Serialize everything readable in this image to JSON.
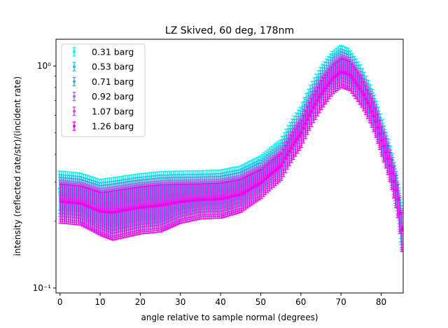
{
  "chart_data": {
    "type": "scatter",
    "title": "LZ Skived, 60 deg, 178nm",
    "xlabel": "angle relative to sample normal (degrees)",
    "ylabel": "intensity (reflected rate/str)/(incident rate)",
    "xlim": [
      -1,
      85.5
    ],
    "ylim": [
      0.095,
      1.32
    ],
    "yscale": "log",
    "grid": false,
    "legend_position": "top-left",
    "error_bars": true,
    "x_ticks": [
      0,
      10,
      20,
      30,
      40,
      50,
      60,
      70,
      80
    ],
    "x_tick_labels": [
      "0",
      "10",
      "20",
      "30",
      "40",
      "50",
      "60",
      "70",
      "80"
    ],
    "y_ticks": [
      0.1,
      1.0
    ],
    "y_tick_labels": [
      "10⁻¹",
      "10⁰"
    ],
    "profile": {
      "x": [
        0,
        5,
        10,
        13,
        20,
        25,
        30,
        35,
        40,
        45,
        50,
        55,
        60,
        65,
        68,
        70,
        72,
        75,
        78,
        80,
        82,
        84,
        85
      ],
      "y": [
        0.255,
        0.25,
        0.23,
        0.228,
        0.24,
        0.245,
        0.255,
        0.26,
        0.262,
        0.275,
        0.31,
        0.37,
        0.52,
        0.78,
        0.92,
        0.98,
        0.95,
        0.8,
        0.62,
        0.48,
        0.37,
        0.26,
        0.19
      ],
      "error_fraction": [
        0.2,
        0.2,
        0.22,
        0.25,
        0.24,
        0.24,
        0.2,
        0.18,
        0.18,
        0.17,
        0.15,
        0.14,
        0.14,
        0.15,
        0.15,
        0.15,
        0.15,
        0.15,
        0.15,
        0.15,
        0.15,
        0.17,
        0.2
      ]
    },
    "series": [
      {
        "name": "0.31 barg",
        "color": "#00f2f2",
        "scale": 1.1,
        "x_offset": -0.15
      },
      {
        "name": "0.53 barg",
        "color": "#1cc8e6",
        "scale": 1.06,
        "x_offset": -0.09
      },
      {
        "name": "0.71 barg",
        "color": "#4a9ee6",
        "scale": 1.03,
        "x_offset": -0.03
      },
      {
        "name": "0.92 barg",
        "color": "#a36fe6",
        "scale": 1.0,
        "x_offset": 0.03
      },
      {
        "name": "1.07 barg",
        "color": "#c84ae6",
        "scale": 0.98,
        "x_offset": 0.09
      },
      {
        "name": "1.26 barg",
        "color": "#f200f2",
        "scale": 0.96,
        "x_offset": 0.15
      }
    ]
  }
}
